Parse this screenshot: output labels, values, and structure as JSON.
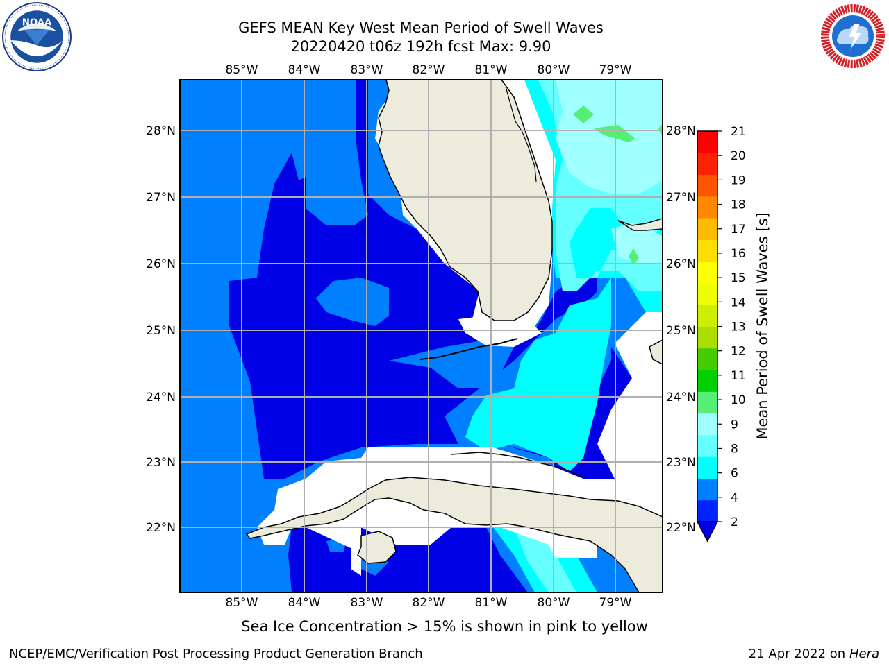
{
  "title": {
    "line1": "GEFS MEAN Key West Mean Period of Swell Waves",
    "line2": "20220420 t06z 192h fcst   Max: 9.90"
  },
  "logos": {
    "left": "noaa-logo",
    "right": "national-weather-service-logo"
  },
  "map": {
    "lon_labels": [
      "85°W",
      "84°W",
      "83°W",
      "82°W",
      "81°W",
      "80°W",
      "79°W"
    ],
    "lat_labels": [
      "28°N",
      "27°N",
      "26°N",
      "25°N",
      "24°N",
      "23°N",
      "22°N"
    ],
    "land_color": "#ecebdc",
    "grid_color": "#b0b0b0"
  },
  "colorbar": {
    "label": "Mean Period of Swell Waves [s]",
    "ticks": [
      "2",
      "4",
      "6",
      "8",
      "9",
      "10",
      "11",
      "12",
      "13",
      "14",
      "15",
      "16",
      "17",
      "18",
      "19",
      "20",
      "21"
    ],
    "colors": [
      "#0024ff",
      "#0080ff",
      "#00ffff",
      "#66ffff",
      "#a0ffff",
      "#55ee77",
      "#00d000",
      "#44cc00",
      "#aadd00",
      "#ccee00",
      "#eeff00",
      "#ffff00",
      "#ffdd00",
      "#ffbb00",
      "#ff8800",
      "#ff5500",
      "#ff2200",
      "#ff0000"
    ],
    "under_color": "#0000e6"
  },
  "caption": "Sea Ice Concentration > 15% is shown in pink to yellow",
  "footer": {
    "left": "NCEP/EMC/Verification Post Processing Product Generation Branch",
    "right_date": "21 Apr 2022 on ",
    "right_host": "Hera"
  }
}
